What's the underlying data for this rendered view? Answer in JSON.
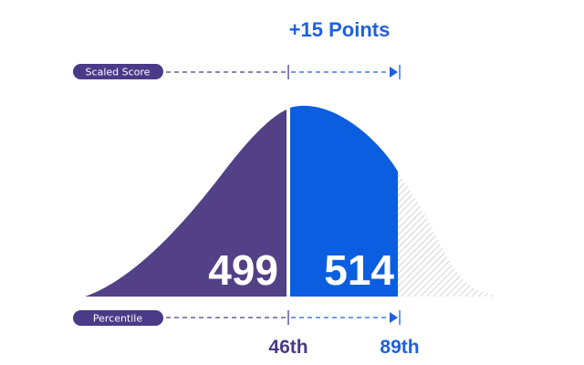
{
  "header": {
    "gain_label": "+15 Points"
  },
  "scaled_score": {
    "label": "Scaled Score",
    "before": "499",
    "after": "514"
  },
  "percentile": {
    "label": "Percentile",
    "before": "46th",
    "after": "89th"
  },
  "colors": {
    "before": "#524186",
    "after": "#0b5ee0",
    "remaining_hatch": "#c8c8c8",
    "accent_text": "#1f5fe0",
    "before_text": "#4a3b84"
  }
}
